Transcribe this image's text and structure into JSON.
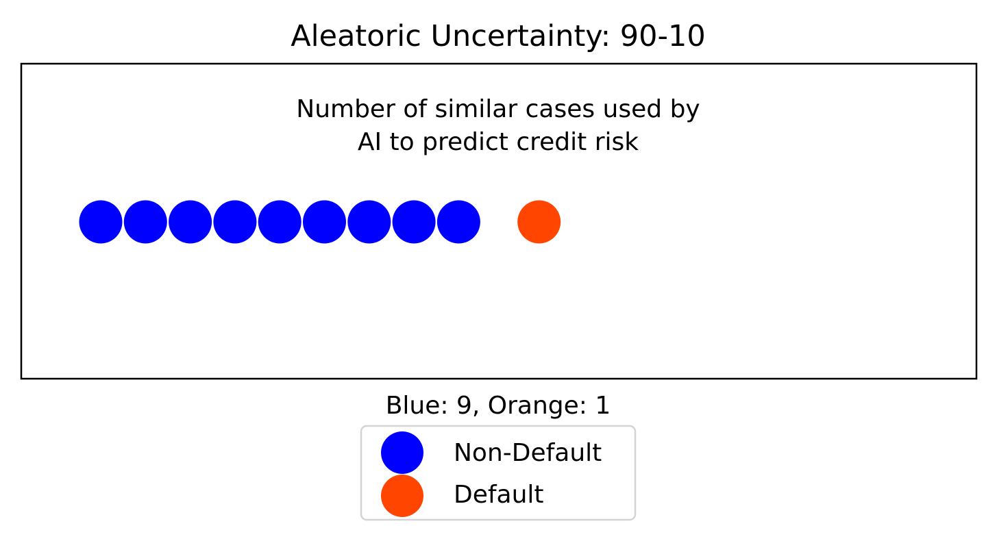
{
  "chart_data": {
    "type": "scatter",
    "title": "Aleatoric Uncertainty: 90-10",
    "annotation_lines": [
      "Number of similar cases used by",
      "AI to predict credit risk"
    ],
    "xlabel": "Blue: 9, Orange: 1",
    "ylabel": "",
    "axes_ticks": false,
    "grid": false,
    "legend_placement": "below",
    "series": [
      {
        "name": "Non-Default",
        "color": "#0000ff",
        "count": 9
      },
      {
        "name": "Default",
        "color": "#ff4500",
        "count": 1
      }
    ]
  }
}
